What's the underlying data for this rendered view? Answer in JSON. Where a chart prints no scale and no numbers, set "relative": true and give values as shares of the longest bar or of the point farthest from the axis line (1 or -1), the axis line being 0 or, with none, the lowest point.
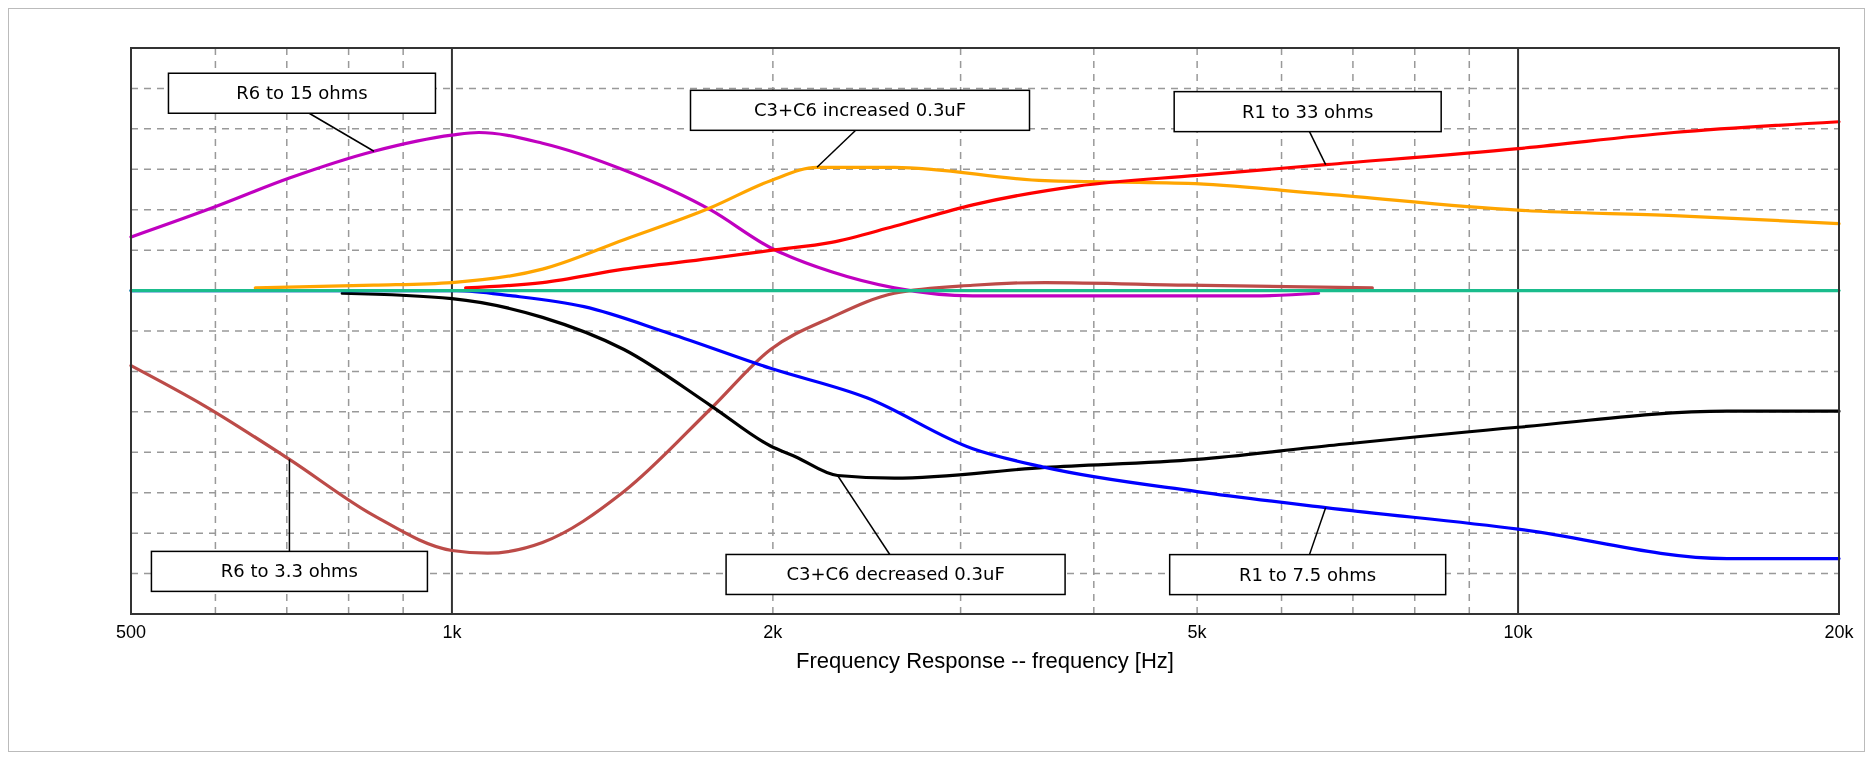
{
  "chart_data": {
    "type": "line",
    "relative": true,
    "log": "x",
    "grid": true,
    "xlabel": "Frequency Response -- frequency [Hz]",
    "xlim": [
      500,
      20000
    ],
    "xticks": [
      {
        "value": 500,
        "label": "500"
      },
      {
        "value": 600,
        "label": null
      },
      {
        "value": 700,
        "label": null
      },
      {
        "value": 800,
        "label": null
      },
      {
        "value": 900,
        "label": null
      },
      {
        "value": 1000,
        "label": "1k"
      },
      {
        "value": 2000,
        "label": "2k"
      },
      {
        "value": 3000,
        "label": null
      },
      {
        "value": 4000,
        "label": null
      },
      {
        "value": 5000,
        "label": "5k"
      },
      {
        "value": 6000,
        "label": null
      },
      {
        "value": 7000,
        "label": null
      },
      {
        "value": 8000,
        "label": null
      },
      {
        "value": 9000,
        "label": null
      },
      {
        "value": 10000,
        "label": "10k"
      },
      {
        "value": 20000,
        "label": "20k"
      }
    ],
    "series": [
      {
        "name": "R6 to 15 ohms",
        "color": "#c000c0",
        "x": [
          500,
          597,
          704,
          845,
          1000,
          1060,
          1216,
          1450,
          1750,
          1990,
          2270,
          2600,
          3080,
          5630,
          6500
        ],
        "values": [
          0.2,
          0.31,
          0.42,
          0.52,
          0.58,
          0.59,
          0.55,
          0.45,
          0.3,
          0.16,
          0.07,
          0.01,
          -0.02,
          -0.02,
          -0.01
        ]
      },
      {
        "name": "R6 to 3.3 ohms",
        "color": "#bc4b48",
        "x": [
          500,
          586,
          704,
          845,
          1000,
          1080,
          1216,
          1450,
          1750,
          1990,
          2270,
          2600,
          3080,
          3600,
          4900,
          7300
        ],
        "values": [
          -0.28,
          -0.43,
          -0.63,
          -0.84,
          -0.97,
          -0.98,
          -0.94,
          -0.75,
          -0.44,
          -0.22,
          -0.1,
          -0.01,
          0.02,
          0.03,
          0.02,
          0.01
        ]
      },
      {
        "name": "C3+C6 increased 0.3uF",
        "color": "#ffa500",
        "x": [
          654,
          845,
          1000,
          1216,
          1450,
          1750,
          1990,
          2200,
          2600,
          3600,
          4900,
          6600,
          10000,
          14000,
          20000
        ],
        "values": [
          0.01,
          0.02,
          0.03,
          0.08,
          0.19,
          0.31,
          0.41,
          0.46,
          0.46,
          0.41,
          0.4,
          0.36,
          0.3,
          0.28,
          0.25
        ]
      },
      {
        "name": "C3+C6 decreased 0.3uF",
        "color": "#000000",
        "x": [
          789,
          1000,
          1216,
          1450,
          1750,
          1990,
          2100,
          2300,
          2600,
          3600,
          5000,
          6600,
          10000,
          15700,
          20000
        ],
        "values": [
          -0.01,
          -0.03,
          -0.1,
          -0.22,
          -0.43,
          -0.58,
          -0.62,
          -0.69,
          -0.7,
          -0.66,
          -0.63,
          -0.58,
          -0.51,
          -0.45,
          -0.45
        ]
      },
      {
        "name": "R1 to 33 ohms",
        "color": "#ff0000",
        "x": [
          1030,
          1216,
          1450,
          1750,
          1990,
          2270,
          2600,
          3080,
          3860,
          5000,
          6600,
          10000,
          14000,
          20000
        ],
        "values": [
          0.01,
          0.03,
          0.08,
          0.12,
          0.15,
          0.18,
          0.24,
          0.32,
          0.39,
          0.43,
          0.47,
          0.53,
          0.59,
          0.63
        ]
      },
      {
        "name": "R1 to 7.5 ohms",
        "color": "#0000ff",
        "x": [
          500,
          1010,
          1140,
          1330,
          1600,
          1990,
          2450,
          3080,
          3600,
          5000,
          6600,
          10000,
          15700,
          20000
        ],
        "values": [
          0,
          0,
          -0.02,
          -0.06,
          -0.16,
          -0.29,
          -0.4,
          -0.59,
          -0.66,
          -0.75,
          -0.81,
          -0.89,
          -1,
          -1
        ]
      },
      {
        "color": "#1abc8c",
        "x": [
          500,
          20000
        ],
        "values": [
          0,
          0
        ]
      }
    ]
  }
}
